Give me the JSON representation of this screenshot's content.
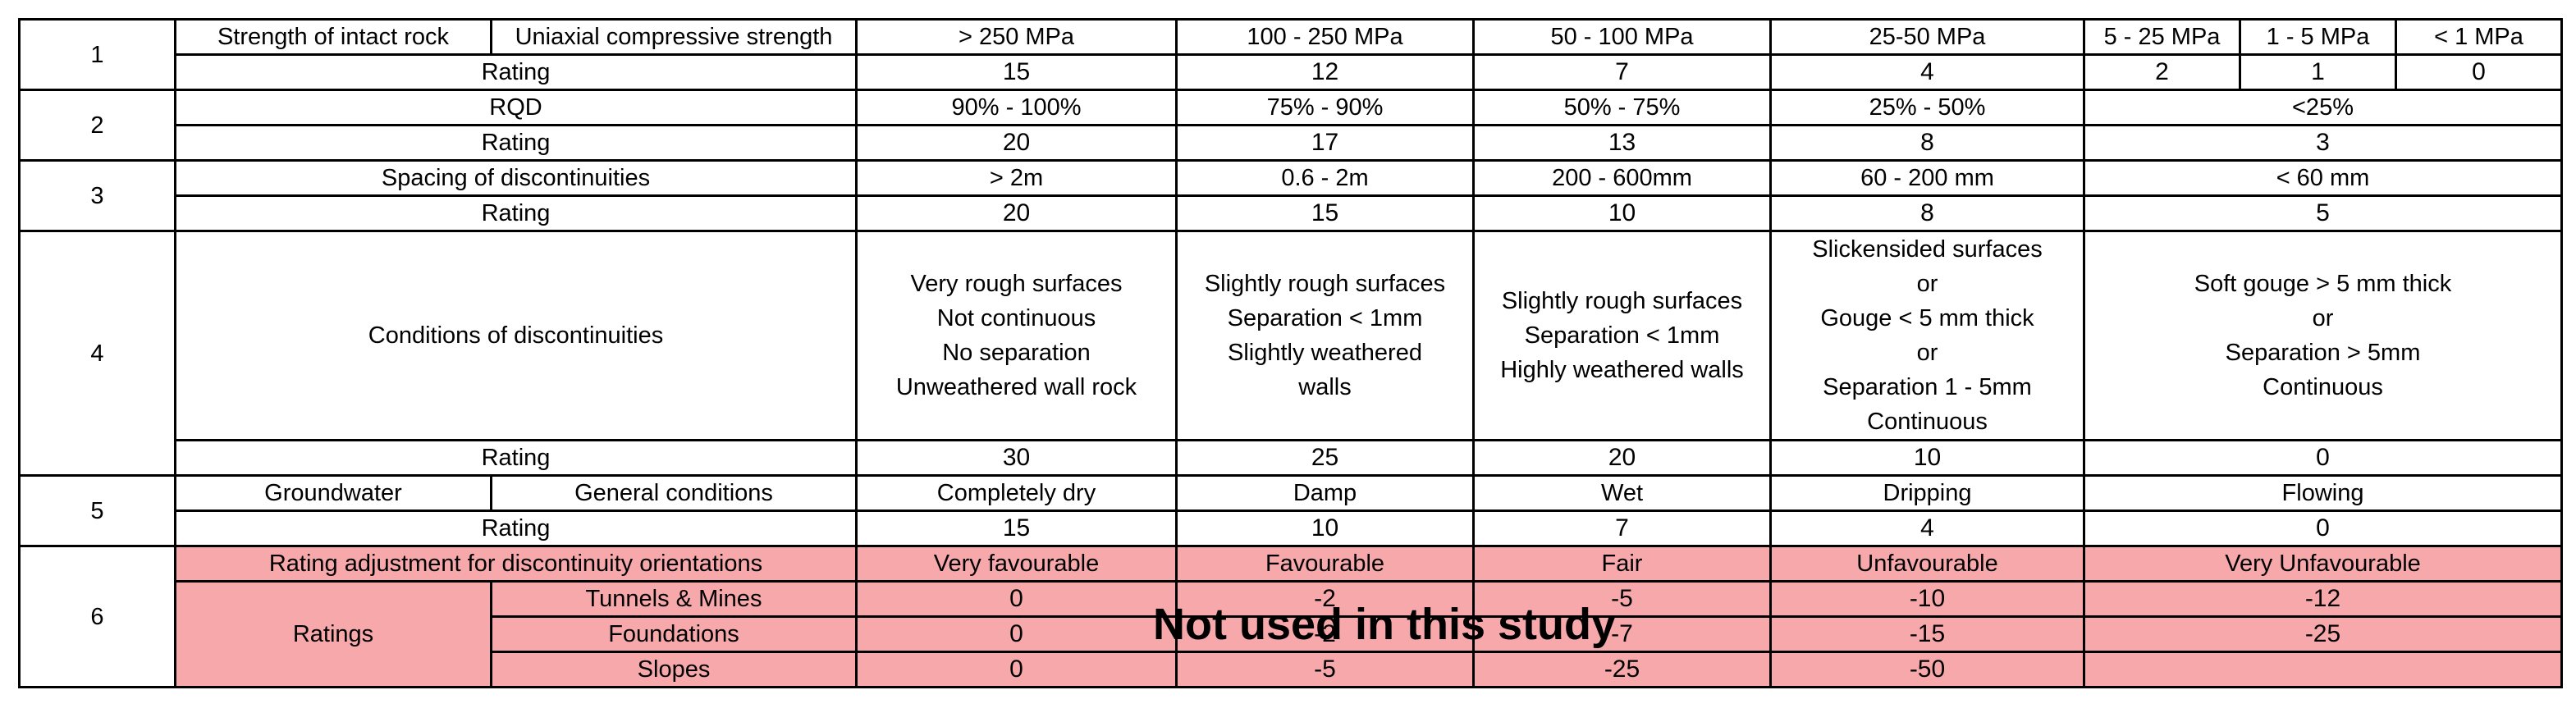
{
  "table": {
    "row1": {
      "num": "1",
      "param": "Strength of intact rock",
      "subparam": "Uniaxial compressive strength",
      "ranges": [
        "> 250 MPa",
        "100 - 250 MPa",
        "50 - 100 MPa",
        "25-50 MPa",
        "5 - 25 MPa",
        "1 - 5 MPa",
        "< 1 MPa"
      ],
      "rating_label": "Rating",
      "ratings": [
        "15",
        "12",
        "7",
        "4",
        "2",
        "1",
        "0"
      ]
    },
    "row2": {
      "num": "2",
      "param": "RQD",
      "ranges": [
        "90% - 100%",
        "75% - 90%",
        "50% - 75%",
        "25% - 50%",
        "<25%"
      ],
      "rating_label": "Rating",
      "ratings": [
        "20",
        "17",
        "13",
        "8",
        "3"
      ]
    },
    "row3": {
      "num": "3",
      "param": "Spacing of discontinuities",
      "ranges": [
        "> 2m",
        "0.6 - 2m",
        "200 - 600mm",
        "60 - 200 mm",
        "< 60 mm"
      ],
      "rating_label": "Rating",
      "ratings": [
        "20",
        "15",
        "10",
        "8",
        "5"
      ]
    },
    "row4": {
      "num": "4",
      "param": "Conditions of discontinuities",
      "descriptions": [
        [
          "Very rough surfaces",
          "Not continuous",
          "No separation",
          "Unweathered wall rock"
        ],
        [
          "Slightly rough surfaces",
          "Separation < 1mm",
          "Slightly weathered",
          "walls"
        ],
        [
          "Slightly rough surfaces",
          "Separation < 1mm",
          "Highly weathered walls"
        ],
        [
          "Slickensided surfaces",
          "or",
          "Gouge < 5 mm thick",
          "or",
          "Separation 1 - 5mm",
          "Continuous"
        ],
        [
          "Soft gouge > 5 mm thick",
          "or",
          "Separation > 5mm",
          "Continuous"
        ]
      ],
      "rating_label": "Rating",
      "ratings": [
        "30",
        "25",
        "20",
        "10",
        "0"
      ]
    },
    "row5": {
      "num": "5",
      "param": "Groundwater",
      "subparam": "General conditions",
      "conditions": [
        "Completely dry",
        "Damp",
        "Wet",
        "Dripping",
        "Flowing"
      ],
      "rating_label": "Rating",
      "ratings": [
        "15",
        "10",
        "7",
        "4",
        "0"
      ]
    },
    "row6": {
      "num": "6",
      "param": "Rating adjustment for discontinuity orientations",
      "orientations": [
        "Very favourable",
        "Favourable",
        "Fair",
        "Unfavourable",
        "Very Unfavourable"
      ],
      "ratings_label": "Ratings",
      "tunnels": {
        "label": "Tunnels & Mines",
        "values": [
          "0",
          "-2",
          "-5",
          "-10",
          "-12"
        ]
      },
      "foundations": {
        "label": "Foundations",
        "values": [
          "0",
          "-2",
          "-7",
          "-15",
          "-25"
        ]
      },
      "slopes": {
        "label": "Slopes",
        "values": [
          "0",
          "-5",
          "-25",
          "-50",
          ""
        ]
      }
    }
  },
  "overlay_text": "Not used in this study",
  "colors": {
    "highlight": "#f7a8ab",
    "border": "#000000"
  }
}
